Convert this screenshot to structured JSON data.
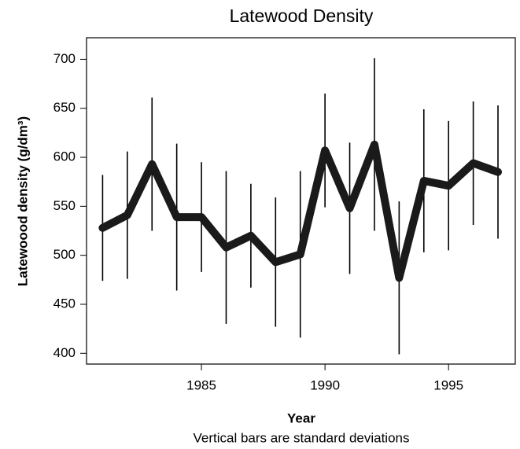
{
  "chart_data": {
    "type": "line",
    "title": "Latewood Density",
    "x_label": "Year",
    "y_label": "Latewoood density (g/dm³)",
    "caption": "Vertical bars are standard deviations",
    "x": [
      1981,
      1982,
      1983,
      1984,
      1985,
      1986,
      1987,
      1988,
      1989,
      1990,
      1991,
      1992,
      1993,
      1994,
      1995,
      1996,
      1997
    ],
    "series": [
      {
        "color": "#1a1a1a",
        "values": [
          528,
          541,
          593,
          539,
          539,
          508,
          520,
          493,
          501,
          607,
          548,
          613,
          477,
          576,
          571,
          594,
          585
        ],
        "errors": [
          54,
          65,
          68,
          75,
          56,
          78,
          53,
          66,
          85,
          58,
          67,
          88,
          78,
          73,
          66,
          63,
          68
        ]
      }
    ],
    "xlim": [
      1980.35,
      1997.7
    ],
    "xticks": [
      1985,
      1990,
      1995
    ],
    "ylim": [
      389,
      722
    ],
    "yticks": [
      400,
      450,
      500,
      550,
      600,
      650,
      700
    ]
  }
}
